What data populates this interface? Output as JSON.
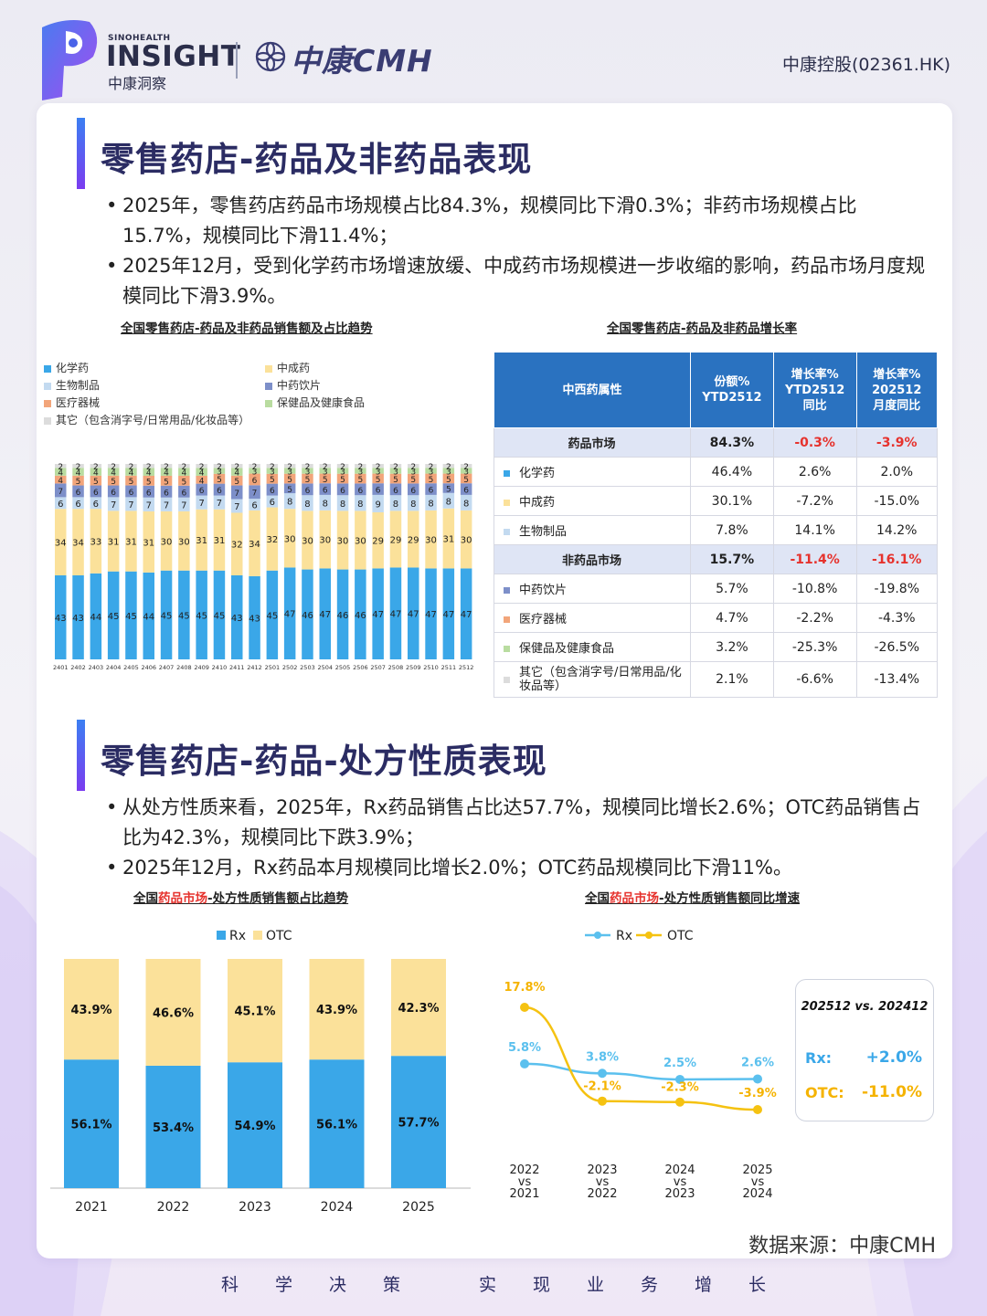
{
  "header": {
    "brand_en_small": "SINOHEALTH",
    "brand_en": "INSIGHT",
    "brand_cn": "中康洞察",
    "cmh_logo_text": "中康CMH",
    "stock": "中康控股(02361.HK)"
  },
  "section1": {
    "title": "零售药店-药品及非药品表现",
    "bullets": [
      "2025年，零售药店药品市场规模占比84.3%，规模同比下滑0.3%；非药市场规模占比15.7%，规模同比下滑11.4%；",
      "2025年12月，受到化学药市场增速放缓、中成药市场规模进一步收缩的影响，药品市场月度规模同比下滑3.9%。"
    ]
  },
  "section2": {
    "title": "零售药店-药品-处方性质表现",
    "bullets": [
      "从处方性质来看，2025年，Rx药品销售占比达57.7%，规模同比增长2.6%；OTC药品销售占比为42.3%，规模同比下跌3.9%；",
      "2025年12月，Rx药品本月规模同比增长2.0%；OTC药品规模同比下滑11%。"
    ]
  },
  "colors": {
    "chem": "#3aa7e8",
    "tcm": "#fbe19a",
    "bio": "#c3daf0",
    "piece": "#7d8fc9",
    "device": "#f2a57a",
    "health": "#b9dca0",
    "other": "#dcdcdc",
    "rx": "#3aa7e8",
    "otc": "#fbe19a",
    "rx_line": "#5bc0ee",
    "otc_line": "#f5c211",
    "red": "#e6322d"
  },
  "chart_data": [
    {
      "type": "bar",
      "stacked": true,
      "title": "全国零售药店-药品及非药品销售额及占比趋势",
      "categories": [
        "2401",
        "2402",
        "2403",
        "2404",
        "2405",
        "2406",
        "2407",
        "2408",
        "2409",
        "2410",
        "2411",
        "2412",
        "2501",
        "2502",
        "2503",
        "2504",
        "2505",
        "2506",
        "2507",
        "2508",
        "2509",
        "2510",
        "2511",
        "2512"
      ],
      "legend": [
        "化学药",
        "中成药",
        "生物制品",
        "中药饮片",
        "医疗器械",
        "保健品及健康食品",
        "其它（包含消字号/日常用品/化妆品等）"
      ],
      "legend_position": "top",
      "series": [
        {
          "name": "化学药",
          "color_key": "chem",
          "values": [
            43,
            43,
            44,
            45,
            45,
            44,
            45,
            45,
            45,
            45,
            43,
            43,
            45,
            47,
            46,
            47,
            46,
            46,
            47,
            47,
            47,
            47,
            47,
            47
          ]
        },
        {
          "name": "中成药",
          "color_key": "tcm",
          "values": [
            34,
            34,
            33,
            31,
            31,
            31,
            30,
            30,
            31,
            31,
            32,
            34,
            32,
            30,
            30,
            30,
            30,
            30,
            29,
            29,
            29,
            30,
            31,
            30
          ]
        },
        {
          "name": "生物制品",
          "color_key": "bio",
          "values": [
            6,
            6,
            6,
            7,
            7,
            7,
            7,
            7,
            7,
            7,
            7,
            6,
            6,
            8,
            8,
            8,
            8,
            8,
            9,
            8,
            8,
            8,
            8,
            8
          ]
        },
        {
          "name": "中药饮片",
          "color_key": "piece",
          "values": [
            7,
            6,
            6,
            6,
            6,
            6,
            6,
            6,
            6,
            6,
            7,
            7,
            6,
            5,
            6,
            6,
            6,
            6,
            6,
            6,
            6,
            6,
            5,
            6
          ]
        },
        {
          "name": "医疗器械",
          "color_key": "device",
          "values": [
            4,
            5,
            5,
            5,
            5,
            5,
            5,
            5,
            4,
            5,
            5,
            6,
            5,
            5,
            5,
            5,
            5,
            5,
            5,
            5,
            5,
            5,
            5,
            5
          ]
        },
        {
          "name": "保健品及健康食品",
          "color_key": "health",
          "values": [
            4,
            4,
            4,
            4,
            4,
            4,
            4,
            4,
            4,
            3,
            4,
            3,
            3,
            3,
            3,
            3,
            3,
            3,
            3,
            3,
            3,
            3,
            3,
            3
          ]
        },
        {
          "name": "其它（包含消字号/日常用品/化妆品等）",
          "color_key": "other",
          "values": [
            2,
            2,
            2,
            2,
            2,
            2,
            2,
            2,
            2,
            2,
            2,
            2,
            2,
            2,
            2,
            2,
            2,
            2,
            2,
            2,
            2,
            2,
            2,
            2
          ]
        }
      ]
    },
    {
      "type": "table",
      "title": "全国零售药店-药品及非药品增长率",
      "columns": [
        "中西药属性",
        "份额%\nYTD2512",
        "增长率%\nYTD2512\n同比",
        "增长率%\n202512\n月度同比"
      ],
      "rows": [
        {
          "group": true,
          "name": "药品市场",
          "share": "84.3%",
          "ytd": "-0.3%",
          "mom": "-3.9%",
          "color_key": ""
        },
        {
          "group": false,
          "name": "化学药",
          "share": "46.4%",
          "ytd": "2.6%",
          "mom": "2.0%",
          "color_key": "chem"
        },
        {
          "group": false,
          "name": "中成药",
          "share": "30.1%",
          "ytd": "-7.2%",
          "mom": "-15.0%",
          "color_key": "tcm"
        },
        {
          "group": false,
          "name": "生物制品",
          "share": "7.8%",
          "ytd": "14.1%",
          "mom": "14.2%",
          "color_key": "bio"
        },
        {
          "group": true,
          "name": "非药品市场",
          "share": "15.7%",
          "ytd": "-11.4%",
          "mom": "-16.1%",
          "color_key": ""
        },
        {
          "group": false,
          "name": "中药饮片",
          "share": "5.7%",
          "ytd": "-10.8%",
          "mom": "-19.8%",
          "color_key": "piece"
        },
        {
          "group": false,
          "name": "医疗器械",
          "share": "4.7%",
          "ytd": "-2.2%",
          "mom": "-4.3%",
          "color_key": "device"
        },
        {
          "group": false,
          "name": "保健品及健康食品",
          "share": "3.2%",
          "ytd": "-25.3%",
          "mom": "-26.5%",
          "color_key": "health"
        },
        {
          "group": false,
          "name": "其它（包含消字号/日常用品/化妆品等）",
          "share": "2.1%",
          "ytd": "-6.6%",
          "mom": "-13.4%",
          "color_key": "other"
        }
      ]
    },
    {
      "type": "bar",
      "stacked": true,
      "title_prefix": "全国",
      "title_highlight": "药品市场",
      "title_suffix": "-处方性质销售额占比趋势",
      "categories": [
        "2021",
        "2022",
        "2023",
        "2024",
        "2025"
      ],
      "legend": [
        "Rx",
        "OTC"
      ],
      "legend_position": "top",
      "ylim": [
        0,
        100
      ],
      "series": [
        {
          "name": "Rx",
          "values": [
            56.1,
            53.4,
            54.9,
            56.1,
            57.7
          ],
          "labels": [
            "56.1%",
            "53.4%",
            "54.9%",
            "56.1%",
            "57.7%"
          ]
        },
        {
          "name": "OTC",
          "values": [
            43.9,
            46.6,
            45.1,
            43.9,
            42.3
          ],
          "labels": [
            "43.9%",
            "46.6%",
            "45.1%",
            "43.9%",
            "42.3%"
          ]
        }
      ]
    },
    {
      "type": "line",
      "title_prefix": "全国",
      "title_highlight": "药品市场",
      "title_suffix": "-处方性质销售额同比增速",
      "categories": [
        "2022\nvs\n2021",
        "2023\nvs\n2022",
        "2024\nvs\n2023",
        "2025\nvs\n2024"
      ],
      "legend": [
        "Rx",
        "OTC"
      ],
      "legend_position": "top",
      "series": [
        {
          "name": "Rx",
          "values": [
            5.8,
            3.8,
            2.5,
            2.6
          ],
          "labels": [
            "5.8%",
            "3.8%",
            "2.5%",
            "2.6%"
          ]
        },
        {
          "name": "OTC",
          "values": [
            17.8,
            -2.1,
            -2.3,
            -3.9
          ],
          "labels": [
            "17.8%",
            "-2.1%",
            "-2.3%",
            "-3.9%"
          ]
        }
      ],
      "callout": {
        "title": "202512 vs. 202412",
        "rx_label": "Rx:",
        "rx_value": "+2.0%",
        "otc_label": "OTC:",
        "otc_value": "-11.0%"
      }
    }
  ],
  "footer": {
    "source": "数据来源：中康CMH",
    "motto": [
      "科",
      "学",
      "决",
      "策",
      "实",
      "现",
      "业",
      "务",
      "增",
      "长"
    ]
  }
}
